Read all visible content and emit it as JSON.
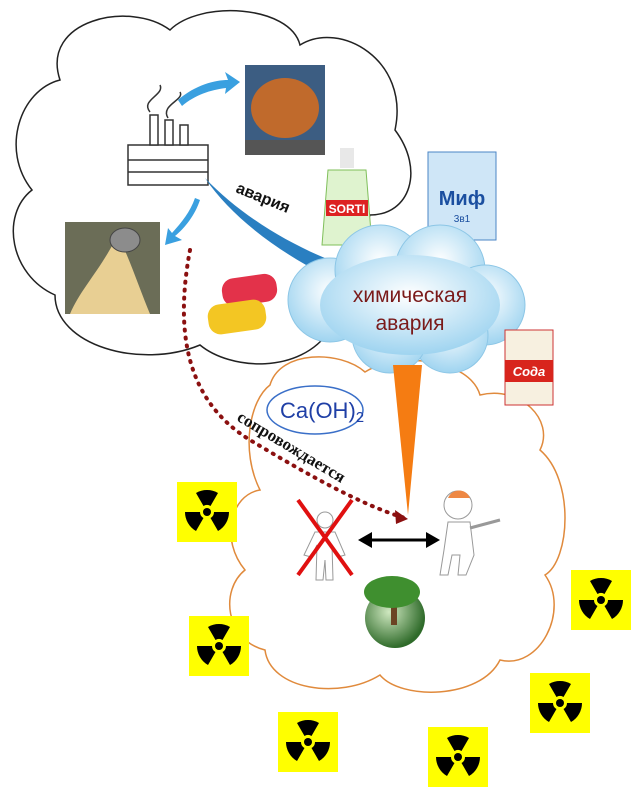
{
  "labels": {
    "accident": "авария",
    "cloud_line1": "химическая",
    "cloud_line2": "авария",
    "formula": "Ca(OH)",
    "formula_subscript": "2",
    "accompanied": "сопровождается"
  },
  "products": {
    "dish_soap": "SORTI",
    "detergent": "Миф",
    "detergent_sub": "3в1",
    "soda": "Сода"
  }
}
